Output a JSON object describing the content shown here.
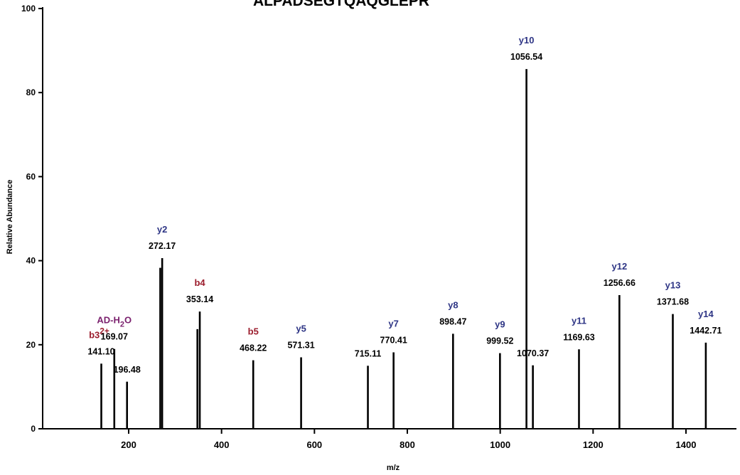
{
  "chart_data": {
    "type": "bar",
    "title": "ALPADSEGTQAQGLEPR",
    "xlabel": "m/z",
    "ylabel": "Relative Abundance",
    "xlim": [
      60,
      1505
    ],
    "ylim": [
      0,
      100
    ],
    "xticks": [
      200,
      400,
      600,
      800,
      1000,
      1200,
      1400
    ],
    "yticks": [
      0,
      20,
      40,
      60,
      80,
      100
    ],
    "colors": {
      "axis": "#000000",
      "bar": "#000000",
      "b_ion": "#9b1c2c",
      "y_ion": "#2e3585",
      "neutral_loss": "#7a1f6d"
    },
    "peaks": [
      {
        "mz": 141.1,
        "intensity": 15.5,
        "mz_label": "141.10",
        "ion": "b3",
        "ion_sup": "2+",
        "ion_type": "b"
      },
      {
        "mz": 169.07,
        "intensity": 19.0,
        "mz_label": "169.07",
        "ion": "AD-H",
        "ion_sub": "2",
        "ion_tail": "O",
        "ion_type": "neutral_loss"
      },
      {
        "mz": 196.48,
        "intensity": 11.2,
        "mz_label": "196.48"
      },
      {
        "mz": 268.0,
        "intensity": 38.3
      },
      {
        "mz": 272.17,
        "intensity": 40.6,
        "mz_label": "272.17",
        "ion": "y2",
        "ion_type": "y"
      },
      {
        "mz": 348.0,
        "intensity": 23.7
      },
      {
        "mz": 353.14,
        "intensity": 27.9,
        "mz_label": "353.14",
        "ion": "b4",
        "ion_type": "b"
      },
      {
        "mz": 468.22,
        "intensity": 16.3,
        "mz_label": "468.22",
        "ion": "b5",
        "ion_type": "b"
      },
      {
        "mz": 571.31,
        "intensity": 17.0,
        "mz_label": "571.31",
        "ion": "y5",
        "ion_type": "y"
      },
      {
        "mz": 715.11,
        "intensity": 15.0,
        "mz_label": "715.11"
      },
      {
        "mz": 770.41,
        "intensity": 18.2,
        "mz_label": "770.41",
        "ion": "y7",
        "ion_type": "y"
      },
      {
        "mz": 898.47,
        "intensity": 22.6,
        "mz_label": "898.47",
        "ion": "y8",
        "ion_type": "y"
      },
      {
        "mz": 999.52,
        "intensity": 18.0,
        "mz_label": "999.52",
        "ion": "y9",
        "ion_type": "y"
      },
      {
        "mz": 1056.54,
        "intensity": 85.6,
        "mz_label": "1056.54",
        "ion": "y10",
        "ion_type": "y"
      },
      {
        "mz": 1070.37,
        "intensity": 15.1,
        "mz_label": "1070.37"
      },
      {
        "mz": 1169.63,
        "intensity": 18.9,
        "mz_label": "1169.63",
        "ion": "y11",
        "ion_type": "y"
      },
      {
        "mz": 1256.66,
        "intensity": 31.8,
        "mz_label": "1256.66",
        "ion": "y12",
        "ion_type": "y"
      },
      {
        "mz": 1371.68,
        "intensity": 27.3,
        "mz_label": "1371.68",
        "ion": "y13",
        "ion_type": "y"
      },
      {
        "mz": 1442.71,
        "intensity": 20.5,
        "mz_label": "1442.71",
        "ion": "y14",
        "ion_type": "y"
      }
    ]
  }
}
